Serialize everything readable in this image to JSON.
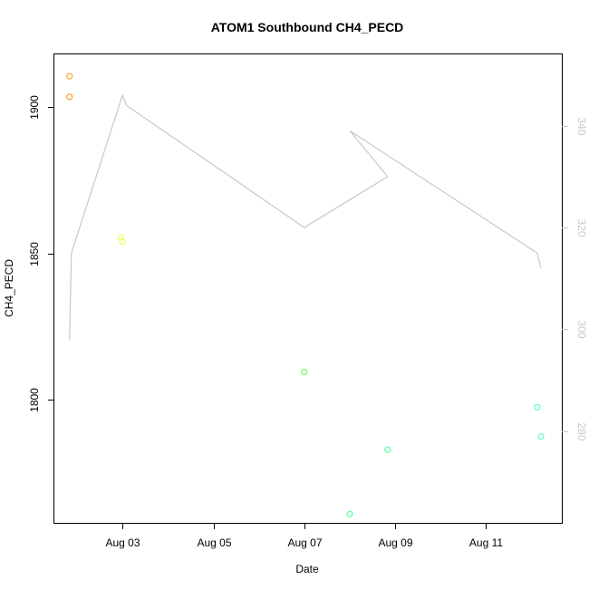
{
  "chart_data": {
    "type": "scatter",
    "title": "ATOM1 Southbound CH4_PECD",
    "xlabel": "Date",
    "ylabel": "CH4_PECD",
    "x_ticks": [
      {
        "date": "2016-08-03",
        "label": "Aug 03"
      },
      {
        "date": "2016-08-05",
        "label": "Aug 05"
      },
      {
        "date": "2016-08-07",
        "label": "Aug 07"
      },
      {
        "date": "2016-08-09",
        "label": "Aug 09"
      },
      {
        "date": "2016-08-11",
        "label": "Aug 11"
      }
    ],
    "xlim": [
      "2016-08-01T12:00",
      "2016-08-12T16:00"
    ],
    "ylim": [
      1758,
      1918
    ],
    "y_ticks": [
      1800,
      1850,
      1900
    ],
    "y2lim": [
      262,
      354
    ],
    "y2_ticks": [
      280,
      300,
      320,
      340
    ],
    "series": [
      {
        "points": [
          {
            "x": "2016-08-01T20:00",
            "y": 1910.5,
            "color": "#ff8c00"
          },
          {
            "x": "2016-08-01T20:00",
            "y": 1903.5,
            "color": "#ff8c00"
          },
          {
            "x": "2016-08-02T23:00",
            "y": 1855.5,
            "color": "#e8ff3a"
          },
          {
            "x": "2016-08-03T00:00",
            "y": 1854.0,
            "color": "#e8ff3a"
          },
          {
            "x": "2016-08-07T00:00",
            "y": 1809.5,
            "color": "#5aff3a"
          },
          {
            "x": "2016-08-08T00:00",
            "y": 1761.0,
            "color": "#3aff78"
          },
          {
            "x": "2016-08-08T20:00",
            "y": 1783.0,
            "color": "#3aff90"
          },
          {
            "x": "2016-08-12T03:00",
            "y": 1797.5,
            "color": "#3affbe"
          },
          {
            "x": "2016-08-12T05:00",
            "y": 1787.5,
            "color": "#3affbe"
          }
        ]
      },
      {
        "axis": "right",
        "color": "#c8c8c8",
        "points": [
          {
            "x": "2016-08-01T20:00",
            "y": 298
          },
          {
            "x": "2016-08-01T21:00",
            "y": 315
          },
          {
            "x": "2016-08-03T00:00",
            "y": 346
          },
          {
            "x": "2016-08-03T02:00",
            "y": 344
          },
          {
            "x": "2016-08-07T00:00",
            "y": 320
          },
          {
            "x": "2016-08-08T20:00",
            "y": 330
          },
          {
            "x": "2016-08-08T00:00",
            "y": 339
          },
          {
            "x": "2016-08-12T03:00",
            "y": 315
          },
          {
            "x": "2016-08-12T05:00",
            "y": 312
          }
        ]
      }
    ]
  }
}
